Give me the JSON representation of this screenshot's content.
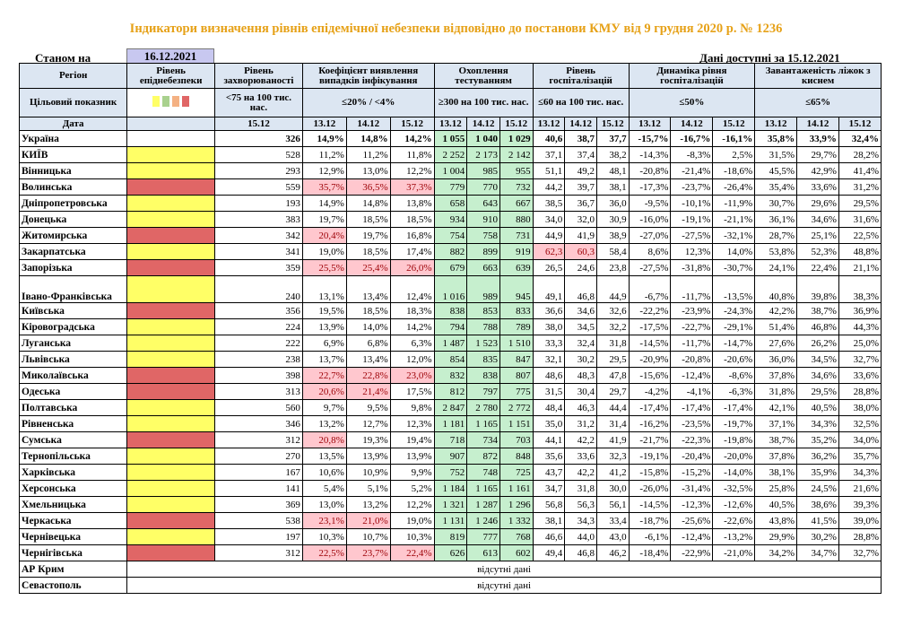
{
  "title": "Індикатори визначення рівнів епідемічної небезпеки відповідно до постанови КМУ від 9 грудня 2020 р. № 1236",
  "status_label": "Станом на",
  "status_date": "16.12.2021",
  "available": "Дані доступні за 15.12.2021",
  "headers": {
    "region": "Регіон",
    "level": "Рівень епіднебезпеки",
    "incidence": "Рівень захворюваності",
    "detection": "Коефіцієнт виявлення випадків інфікування",
    "testing": "Охоплення тестуванням",
    "hosp": "Рівень госпіталізацій",
    "dyn": "Динаміка рівня госпіталізацій",
    "oxygen": "Завантаженість ліжок з киснем",
    "target": "Цільовий показник",
    "t_incidence": "<75 на 100 тис. нас.",
    "t_detection": "≤20% / <4%",
    "t_testing": "≥300 на 100 тис. нас.",
    "t_hosp": "≤60 на 100 тис. нас.",
    "t_dyn": "≤50%",
    "t_oxygen": "≤65%",
    "date": "Дата",
    "d1512": "15.12",
    "d1312": "13.12",
    "d1412": "14.12"
  },
  "legend_colors": [
    "#ffff66",
    "#a9d18e",
    "#f4b183",
    "#e06666"
  ],
  "rows": [
    {
      "name": "Україна",
      "lvl": "",
      "inc": "326",
      "det": [
        "14,9%",
        "14,8%",
        "14,2%"
      ],
      "test": [
        "1 055",
        "1 040",
        "1 029"
      ],
      "hosp": [
        "40,6",
        "38,7",
        "37,7"
      ],
      "dyn": [
        "-15,7%",
        "-16,7%",
        "-16,1%"
      ],
      "oxy": [
        "35,8%",
        "33,9%",
        "32,4%"
      ],
      "detRed": [
        0,
        0,
        0
      ],
      "hospRed": [
        0,
        0,
        0
      ],
      "ua": true
    },
    {
      "name": "КИЇВ",
      "lvl": "y",
      "inc": "528",
      "det": [
        "11,2%",
        "11,2%",
        "11,8%"
      ],
      "test": [
        "2 252",
        "2 173",
        "2 142"
      ],
      "hosp": [
        "37,1",
        "37,4",
        "38,2"
      ],
      "dyn": [
        "-14,3%",
        "-8,3%",
        "2,5%"
      ],
      "oxy": [
        "31,5%",
        "29,7%",
        "28,2%"
      ],
      "detRed": [
        0,
        0,
        0
      ],
      "hospRed": [
        0,
        0,
        0
      ]
    },
    {
      "name": "Вінницька",
      "lvl": "y",
      "inc": "293",
      "det": [
        "12,9%",
        "13,0%",
        "12,2%"
      ],
      "test": [
        "1 004",
        "985",
        "955"
      ],
      "hosp": [
        "51,1",
        "49,2",
        "48,1"
      ],
      "dyn": [
        "-20,8%",
        "-21,4%",
        "-18,6%"
      ],
      "oxy": [
        "45,5%",
        "42,9%",
        "41,4%"
      ],
      "detRed": [
        0,
        0,
        0
      ],
      "hospRed": [
        0,
        0,
        0
      ]
    },
    {
      "name": "Волинська",
      "lvl": "r",
      "inc": "559",
      "det": [
        "35,7%",
        "36,5%",
        "37,3%"
      ],
      "test": [
        "779",
        "770",
        "732"
      ],
      "hosp": [
        "44,2",
        "39,7",
        "38,1"
      ],
      "dyn": [
        "-17,3%",
        "-23,7%",
        "-26,4%"
      ],
      "oxy": [
        "35,4%",
        "33,6%",
        "31,2%"
      ],
      "detRed": [
        1,
        1,
        1
      ],
      "hospRed": [
        0,
        0,
        0
      ]
    },
    {
      "name": "Дніпропетровська",
      "lvl": "y",
      "inc": "193",
      "det": [
        "14,9%",
        "14,8%",
        "13,8%"
      ],
      "test": [
        "658",
        "643",
        "667"
      ],
      "hosp": [
        "38,5",
        "36,7",
        "36,0"
      ],
      "dyn": [
        "-9,5%",
        "-10,1%",
        "-11,9%"
      ],
      "oxy": [
        "30,7%",
        "29,6%",
        "29,5%"
      ],
      "detRed": [
        0,
        0,
        0
      ],
      "hospRed": [
        0,
        0,
        0
      ]
    },
    {
      "name": "Донецька",
      "lvl": "y",
      "inc": "383",
      "det": [
        "19,7%",
        "18,5%",
        "18,5%"
      ],
      "test": [
        "934",
        "910",
        "880"
      ],
      "hosp": [
        "34,0",
        "32,0",
        "30,9"
      ],
      "dyn": [
        "-16,0%",
        "-19,1%",
        "-21,1%"
      ],
      "oxy": [
        "36,1%",
        "34,6%",
        "31,6%"
      ],
      "detRed": [
        0,
        0,
        0
      ],
      "hospRed": [
        0,
        0,
        0
      ]
    },
    {
      "name": "Житомирська",
      "lvl": "r",
      "inc": "342",
      "det": [
        "20,4%",
        "19,7%",
        "16,8%"
      ],
      "test": [
        "754",
        "758",
        "731"
      ],
      "hosp": [
        "44,9",
        "41,9",
        "38,9"
      ],
      "dyn": [
        "-27,0%",
        "-27,5%",
        "-32,1%"
      ],
      "oxy": [
        "28,7%",
        "25,1%",
        "22,5%"
      ],
      "detRed": [
        1,
        0,
        0
      ],
      "hospRed": [
        0,
        0,
        0
      ]
    },
    {
      "name": "Закарпатська",
      "lvl": "y",
      "inc": "341",
      "det": [
        "19,0%",
        "18,5%",
        "17,4%"
      ],
      "test": [
        "882",
        "899",
        "919"
      ],
      "hosp": [
        "62,3",
        "60,3",
        "58,4"
      ],
      "dyn": [
        "8,6%",
        "12,3%",
        "14,0%"
      ],
      "oxy": [
        "53,8%",
        "52,3%",
        "48,8%"
      ],
      "detRed": [
        0,
        0,
        0
      ],
      "hospRed": [
        1,
        1,
        0
      ]
    },
    {
      "name": "Запорізька",
      "lvl": "r",
      "inc": "359",
      "det": [
        "25,5%",
        "25,4%",
        "26,0%"
      ],
      "test": [
        "679",
        "663",
        "639"
      ],
      "hosp": [
        "26,5",
        "24,6",
        "23,8"
      ],
      "dyn": [
        "-27,5%",
        "-31,8%",
        "-30,7%"
      ],
      "oxy": [
        "24,1%",
        "22,4%",
        "21,1%"
      ],
      "detRed": [
        1,
        1,
        1
      ],
      "hospRed": [
        0,
        0,
        0
      ]
    },
    {
      "name": "Івано-Франківська",
      "lvl": "y",
      "inc": "240",
      "det": [
        "13,1%",
        "13,4%",
        "12,4%"
      ],
      "test": [
        "1 016",
        "989",
        "945"
      ],
      "hosp": [
        "49,1",
        "46,8",
        "44,9"
      ],
      "dyn": [
        "-6,7%",
        "-11,7%",
        "-13,5%"
      ],
      "oxy": [
        "40,8%",
        "39,8%",
        "38,3%"
      ],
      "detRed": [
        0,
        0,
        0
      ],
      "hospRed": [
        0,
        0,
        0
      ],
      "tall": true
    },
    {
      "name": "Київська",
      "lvl": "r",
      "inc": "356",
      "det": [
        "19,5%",
        "18,5%",
        "18,3%"
      ],
      "test": [
        "838",
        "853",
        "833"
      ],
      "hosp": [
        "36,6",
        "34,6",
        "32,6"
      ],
      "dyn": [
        "-22,2%",
        "-23,9%",
        "-24,3%"
      ],
      "oxy": [
        "42,2%",
        "38,7%",
        "36,9%"
      ],
      "detRed": [
        0,
        0,
        0
      ],
      "hospRed": [
        0,
        0,
        0
      ]
    },
    {
      "name": "Кіровоградська",
      "lvl": "y",
      "inc": "224",
      "det": [
        "13,9%",
        "14,0%",
        "14,2%"
      ],
      "test": [
        "794",
        "788",
        "789"
      ],
      "hosp": [
        "38,0",
        "34,5",
        "32,2"
      ],
      "dyn": [
        "-17,5%",
        "-22,7%",
        "-29,1%"
      ],
      "oxy": [
        "51,4%",
        "46,8%",
        "44,3%"
      ],
      "detRed": [
        0,
        0,
        0
      ],
      "hospRed": [
        0,
        0,
        0
      ]
    },
    {
      "name": "Луганська",
      "lvl": "y",
      "inc": "222",
      "det": [
        "6,9%",
        "6,8%",
        "6,3%"
      ],
      "test": [
        "1 487",
        "1 523",
        "1 510"
      ],
      "hosp": [
        "33,3",
        "32,4",
        "31,8"
      ],
      "dyn": [
        "-14,5%",
        "-11,7%",
        "-14,7%"
      ],
      "oxy": [
        "27,6%",
        "26,2%",
        "25,0%"
      ],
      "detRed": [
        0,
        0,
        0
      ],
      "hospRed": [
        0,
        0,
        0
      ]
    },
    {
      "name": "Львівська",
      "lvl": "y",
      "inc": "238",
      "det": [
        "13,7%",
        "13,4%",
        "12,0%"
      ],
      "test": [
        "854",
        "835",
        "847"
      ],
      "hosp": [
        "32,1",
        "30,2",
        "29,5"
      ],
      "dyn": [
        "-20,9%",
        "-20,8%",
        "-20,6%"
      ],
      "oxy": [
        "36,0%",
        "34,5%",
        "32,7%"
      ],
      "detRed": [
        0,
        0,
        0
      ],
      "hospRed": [
        0,
        0,
        0
      ]
    },
    {
      "name": "Миколаївська",
      "lvl": "r",
      "inc": "398",
      "det": [
        "22,7%",
        "22,8%",
        "23,0%"
      ],
      "test": [
        "832",
        "838",
        "807"
      ],
      "hosp": [
        "48,6",
        "48,3",
        "47,8"
      ],
      "dyn": [
        "-15,6%",
        "-12,4%",
        "-8,6%"
      ],
      "oxy": [
        "37,8%",
        "34,6%",
        "33,6%"
      ],
      "detRed": [
        1,
        1,
        1
      ],
      "hospRed": [
        0,
        0,
        0
      ]
    },
    {
      "name": "Одеська",
      "lvl": "r",
      "inc": "313",
      "det": [
        "20,6%",
        "21,4%",
        "17,5%"
      ],
      "test": [
        "812",
        "797",
        "775"
      ],
      "hosp": [
        "31,5",
        "30,4",
        "29,7"
      ],
      "dyn": [
        "-4,2%",
        "-4,1%",
        "-6,3%"
      ],
      "oxy": [
        "31,8%",
        "29,5%",
        "28,8%"
      ],
      "detRed": [
        1,
        1,
        0
      ],
      "hospRed": [
        0,
        0,
        0
      ]
    },
    {
      "name": "Полтавська",
      "lvl": "y",
      "inc": "560",
      "det": [
        "9,7%",
        "9,5%",
        "9,8%"
      ],
      "test": [
        "2 847",
        "2 780",
        "2 772"
      ],
      "hosp": [
        "48,4",
        "46,3",
        "44,4"
      ],
      "dyn": [
        "-17,4%",
        "-17,4%",
        "-17,4%"
      ],
      "oxy": [
        "42,1%",
        "40,5%",
        "38,0%"
      ],
      "detRed": [
        0,
        0,
        0
      ],
      "hospRed": [
        0,
        0,
        0
      ]
    },
    {
      "name": "Рівненська",
      "lvl": "y",
      "inc": "346",
      "det": [
        "13,2%",
        "12,7%",
        "12,3%"
      ],
      "test": [
        "1 181",
        "1 165",
        "1 151"
      ],
      "hosp": [
        "35,0",
        "31,2",
        "31,4"
      ],
      "dyn": [
        "-16,2%",
        "-23,5%",
        "-19,7%"
      ],
      "oxy": [
        "37,1%",
        "34,3%",
        "32,5%"
      ],
      "detRed": [
        0,
        0,
        0
      ],
      "hospRed": [
        0,
        0,
        0
      ]
    },
    {
      "name": "Сумська",
      "lvl": "r",
      "inc": "312",
      "det": [
        "20,8%",
        "19,3%",
        "19,4%"
      ],
      "test": [
        "718",
        "734",
        "703"
      ],
      "hosp": [
        "44,1",
        "42,2",
        "41,9"
      ],
      "dyn": [
        "-21,7%",
        "-22,3%",
        "-19,8%"
      ],
      "oxy": [
        "38,7%",
        "35,2%",
        "34,0%"
      ],
      "detRed": [
        1,
        0,
        0
      ],
      "hospRed": [
        0,
        0,
        0
      ]
    },
    {
      "name": "Тернопільська",
      "lvl": "y",
      "inc": "270",
      "det": [
        "13,5%",
        "13,9%",
        "13,9%"
      ],
      "test": [
        "907",
        "872",
        "848"
      ],
      "hosp": [
        "35,6",
        "33,6",
        "32,3"
      ],
      "dyn": [
        "-19,1%",
        "-20,4%",
        "-20,0%"
      ],
      "oxy": [
        "37,8%",
        "36,2%",
        "35,7%"
      ],
      "detRed": [
        0,
        0,
        0
      ],
      "hospRed": [
        0,
        0,
        0
      ]
    },
    {
      "name": "Харківська",
      "lvl": "y",
      "inc": "167",
      "det": [
        "10,6%",
        "10,9%",
        "9,9%"
      ],
      "test": [
        "752",
        "748",
        "725"
      ],
      "hosp": [
        "43,7",
        "42,2",
        "41,2"
      ],
      "dyn": [
        "-15,8%",
        "-15,2%",
        "-14,0%"
      ],
      "oxy": [
        "38,1%",
        "35,9%",
        "34,3%"
      ],
      "detRed": [
        0,
        0,
        0
      ],
      "hospRed": [
        0,
        0,
        0
      ]
    },
    {
      "name": "Херсонська",
      "lvl": "y",
      "inc": "141",
      "det": [
        "5,4%",
        "5,1%",
        "5,2%"
      ],
      "test": [
        "1 184",
        "1 165",
        "1 161"
      ],
      "hosp": [
        "34,7",
        "31,8",
        "30,0"
      ],
      "dyn": [
        "-26,0%",
        "-31,4%",
        "-32,5%"
      ],
      "oxy": [
        "25,8%",
        "24,5%",
        "21,6%"
      ],
      "detRed": [
        0,
        0,
        0
      ],
      "hospRed": [
        0,
        0,
        0
      ]
    },
    {
      "name": "Хмельницька",
      "lvl": "y",
      "inc": "369",
      "det": [
        "13,0%",
        "13,2%",
        "12,2%"
      ],
      "test": [
        "1 321",
        "1 287",
        "1 296"
      ],
      "hosp": [
        "56,8",
        "56,3",
        "56,1"
      ],
      "dyn": [
        "-14,5%",
        "-12,3%",
        "-12,6%"
      ],
      "oxy": [
        "40,5%",
        "38,6%",
        "39,3%"
      ],
      "detRed": [
        0,
        0,
        0
      ],
      "hospRed": [
        0,
        0,
        0
      ]
    },
    {
      "name": "Черкаська",
      "lvl": "r",
      "inc": "538",
      "det": [
        "23,1%",
        "21,0%",
        "19,0%"
      ],
      "test": [
        "1 131",
        "1 246",
        "1 332"
      ],
      "hosp": [
        "38,1",
        "34,3",
        "33,4"
      ],
      "dyn": [
        "-18,7%",
        "-25,6%",
        "-22,6%"
      ],
      "oxy": [
        "43,8%",
        "41,5%",
        "39,0%"
      ],
      "detRed": [
        1,
        1,
        0
      ],
      "hospRed": [
        0,
        0,
        0
      ]
    },
    {
      "name": "Чернівецька",
      "lvl": "y",
      "inc": "197",
      "det": [
        "10,3%",
        "10,7%",
        "10,3%"
      ],
      "test": [
        "819",
        "777",
        "768"
      ],
      "hosp": [
        "46,6",
        "44,0",
        "43,0"
      ],
      "dyn": [
        "-6,1%",
        "-12,4%",
        "-13,2%"
      ],
      "oxy": [
        "29,9%",
        "30,2%",
        "28,8%"
      ],
      "detRed": [
        0,
        0,
        0
      ],
      "hospRed": [
        0,
        0,
        0
      ]
    },
    {
      "name": "Чернігівська",
      "lvl": "r",
      "inc": "312",
      "det": [
        "22,5%",
        "23,7%",
        "22,4%"
      ],
      "test": [
        "626",
        "613",
        "602"
      ],
      "hosp": [
        "49,4",
        "46,8",
        "46,2"
      ],
      "dyn": [
        "-18,4%",
        "-22,9%",
        "-21,0%"
      ],
      "oxy": [
        "34,2%",
        "34,7%",
        "32,7%"
      ],
      "detRed": [
        1,
        1,
        1
      ],
      "hospRed": [
        0,
        0,
        0
      ]
    }
  ],
  "nodata_rows": [
    {
      "name": "АР Крим",
      "text": "відсутні дані"
    },
    {
      "name": "Севастополь",
      "text": "відсутні дані"
    }
  ]
}
